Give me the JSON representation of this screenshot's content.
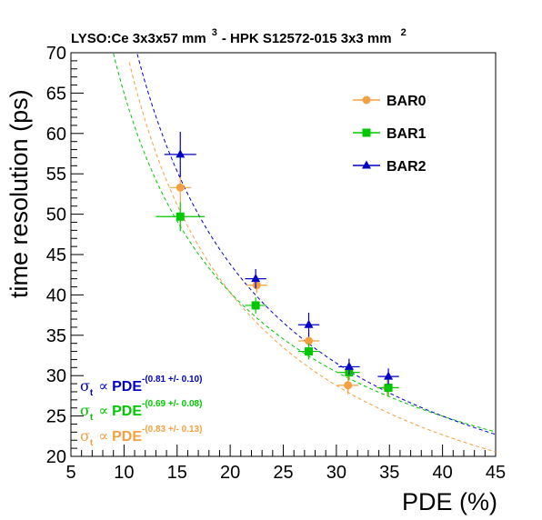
{
  "chart_data": {
    "type": "scatter",
    "title": "LYSO:Ce 3x3x57 mm 3 - HPK S12572-015 3x3 mm 2",
    "title_parts": {
      "part1": "LYSO:Ce 3x3x57 mm",
      "sup1": "3",
      "part2": "- HPK S12572-015 3x3 mm",
      "sup2": "2"
    },
    "xlabel": "PDE (%)",
    "ylabel": "time resolution (ps)",
    "xlim": [
      5,
      45
    ],
    "ylim": [
      20,
      70
    ],
    "x_ticks": [
      5,
      10,
      15,
      20,
      25,
      30,
      35,
      40,
      45
    ],
    "y_ticks": [
      20,
      25,
      30,
      35,
      40,
      45,
      50,
      55,
      60,
      65,
      70
    ],
    "grid": false,
    "legend_position": "top-right",
    "series": [
      {
        "name": "BAR0",
        "color": "#f5a040",
        "marker": "circle",
        "points": [
          {
            "x": 15.3,
            "y": 53.3,
            "xerr": 1.0,
            "yerr": 1.8
          },
          {
            "x": 22.5,
            "y": 41.2,
            "xerr": 1.0,
            "yerr": 1.0
          },
          {
            "x": 27.4,
            "y": 34.3,
            "xerr": 1.0,
            "yerr": 1.0
          },
          {
            "x": 31.1,
            "y": 28.8,
            "xerr": 1.0,
            "yerr": 1.1
          },
          {
            "x": 34.8,
            "y": 28.5,
            "xerr": 1.0,
            "yerr": 1.0
          }
        ],
        "fit": {
          "A": 48.5,
          "exponent": -0.83,
          "pivot": 16
        }
      },
      {
        "name": "BAR1",
        "color": "#00c800",
        "marker": "square",
        "points": [
          {
            "x": 15.3,
            "y": 49.7,
            "xerr": 2.3,
            "yerr": 1.8
          },
          {
            "x": 22.4,
            "y": 38.7,
            "xerr": 1.0,
            "yerr": 1.0
          },
          {
            "x": 27.4,
            "y": 33.0,
            "xerr": 1.0,
            "yerr": 1.0
          },
          {
            "x": 31.2,
            "y": 30.4,
            "xerr": 1.0,
            "yerr": 1.0
          },
          {
            "x": 34.9,
            "y": 28.5,
            "xerr": 1.0,
            "yerr": 1.0
          }
        ],
        "fit": {
          "A": 47.0,
          "exponent": -0.69,
          "pivot": 16
        }
      },
      {
        "name": "BAR2",
        "color": "#0000c8",
        "marker": "triangle",
        "points": [
          {
            "x": 15.3,
            "y": 57.4,
            "xerr": 1.5,
            "yerr": 2.8
          },
          {
            "x": 22.4,
            "y": 42.0,
            "xerr": 1.0,
            "yerr": 1.2
          },
          {
            "x": 27.4,
            "y": 36.3,
            "xerr": 1.0,
            "yerr": 1.5
          },
          {
            "x": 31.2,
            "y": 31.1,
            "xerr": 1.0,
            "yerr": 1.0
          },
          {
            "x": 34.9,
            "y": 29.9,
            "xerr": 1.0,
            "yerr": 1.0
          }
        ],
        "fit": {
          "A": 52.5,
          "exponent": -0.81,
          "pivot": 16
        }
      }
    ],
    "annotations": [
      {
        "sigma": "σ",
        "sub": "t",
        "prop": "∝",
        "text": "PDE",
        "exponent": "-(0.81 +/- 0.10)",
        "color": "#0000c8"
      },
      {
        "sigma": "σ",
        "sub": "t",
        "prop": "∝",
        "text": "PDE",
        "exponent": "-(0.69 +/- 0.08)",
        "color": "#00c800"
      },
      {
        "sigma": "σ",
        "sub": "t",
        "prop": "∝",
        "text": "PDE",
        "exponent": "-(0.83 +/- 0.13)",
        "color": "#f5a040"
      }
    ]
  }
}
